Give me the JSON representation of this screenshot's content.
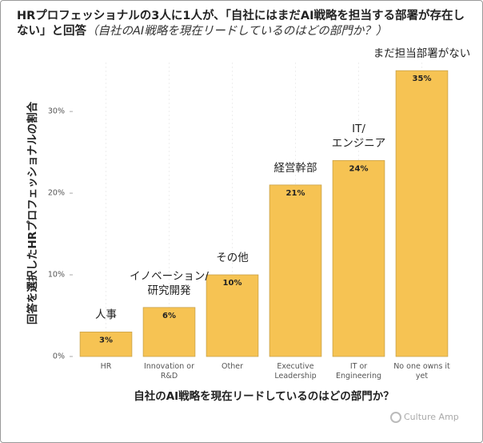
{
  "chart_data": {
    "type": "bar",
    "title": "HRプロフェッショナルの3人に1人が、「自社にはまだAI戦略を担当する部署が存在しない」と回答",
    "subtitle": "（自社のAI戦略を現在リードしているのはどの部門か？）",
    "x_label": "自社のAI戦略を現在リードしているのはどの部門か？",
    "y_label": "回答を選択したHRプロフェッショナルの割合",
    "categories": [
      "HR",
      "Innovation or\nR&D",
      "Other",
      "Executive\nLeadership",
      "IT or\nEngineering",
      "No one owns it\nyet"
    ],
    "annotations": [
      "人事",
      "イノベーション/\n研究開発",
      "その他",
      "経営幹部",
      "IT/\nエンジニア",
      "まだ担当部署がない"
    ],
    "values": [
      3,
      6,
      10,
      21,
      24,
      35
    ],
    "value_labels": [
      "3%",
      "6%",
      "10%",
      "21%",
      "24%",
      "35%"
    ],
    "color": "#f6c353",
    "ylim": [
      0,
      36
    ],
    "yticks": [
      {
        "value": 0,
        "label": "0%"
      },
      {
        "value": 10,
        "label": "10%"
      },
      {
        "value": 20,
        "label": "20%"
      },
      {
        "value": 30,
        "label": "30%"
      }
    ],
    "logo": "Culture Amp"
  }
}
